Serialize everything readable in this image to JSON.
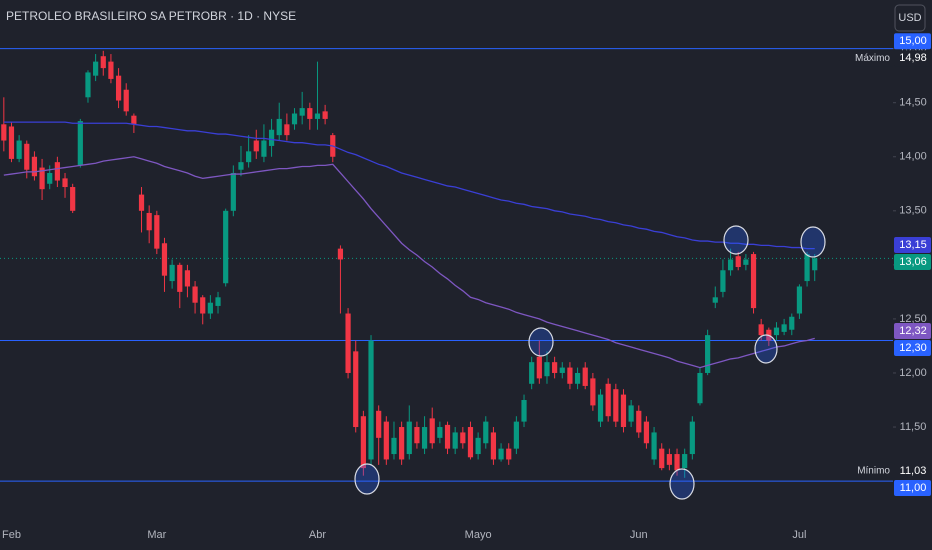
{
  "header": {
    "title": "PETROLEO BRASILEIRO SA PETROBR · 1D · NYSE",
    "currency": "USD"
  },
  "chart_data": {
    "type": "candlestick",
    "categories": [
      null,
      "Feb",
      null,
      null,
      null,
      null,
      null,
      null,
      null,
      null,
      null,
      null,
      null,
      null,
      null,
      null,
      null,
      null,
      null,
      null,
      "Mar",
      null,
      null,
      null,
      null,
      null,
      null,
      null,
      null,
      null,
      null,
      null,
      null,
      null,
      null,
      null,
      null,
      null,
      null,
      null,
      null,
      "Abr",
      null,
      null,
      null,
      null,
      null,
      null,
      null,
      null,
      null,
      null,
      null,
      null,
      null,
      null,
      null,
      null,
      null,
      null,
      null,
      null,
      "Mayo",
      null,
      null,
      null,
      null,
      null,
      null,
      null,
      null,
      null,
      null,
      null,
      null,
      null,
      null,
      null,
      null,
      null,
      null,
      null,
      null,
      "Jun",
      null,
      null,
      null,
      null,
      null,
      null,
      null,
      null,
      null,
      null,
      null,
      null,
      null,
      null,
      null,
      null,
      null,
      null,
      null,
      null,
      "Jul",
      null,
      null
    ],
    "ohlc": [
      [
        14.3,
        14.55,
        14.05,
        14.15
      ],
      [
        14.28,
        14.32,
        13.95,
        13.98
      ],
      [
        13.98,
        14.2,
        13.95,
        14.15
      ],
      [
        14.12,
        14.15,
        13.8,
        13.88
      ],
      [
        14,
        14.05,
        13.78,
        13.82
      ],
      [
        13.9,
        13.98,
        13.6,
        13.7
      ],
      [
        13.75,
        13.92,
        13.7,
        13.85
      ],
      [
        13.95,
        14,
        13.72,
        13.78
      ],
      [
        13.8,
        13.85,
        13.62,
        13.72
      ],
      [
        13.72,
        13.75,
        13.48,
        13.5
      ],
      [
        13.92,
        14.35,
        13.9,
        14.33
      ],
      [
        14.55,
        14.8,
        14.5,
        14.78
      ],
      [
        14.75,
        14.95,
        14.7,
        14.88
      ],
      [
        14.93,
        14.98,
        14.75,
        14.82
      ],
      [
        14.88,
        14.95,
        14.68,
        14.72
      ],
      [
        14.75,
        14.82,
        14.45,
        14.52
      ],
      [
        14.62,
        14.68,
        14.38,
        14.42
      ],
      [
        14.38,
        14.4,
        14.22,
        14.3
      ],
      [
        13.65,
        13.72,
        13.3,
        13.5
      ],
      [
        13.48,
        13.55,
        13.2,
        13.32
      ],
      [
        13.46,
        13.5,
        13.1,
        13.15
      ],
      [
        13.2,
        13.25,
        12.75,
        12.9
      ],
      [
        12.85,
        13.05,
        12.78,
        13
      ],
      [
        13,
        13.02,
        12.6,
        12.75
      ],
      [
        12.95,
        13,
        12.7,
        12.8
      ],
      [
        12.8,
        12.85,
        12.55,
        12.65
      ],
      [
        12.7,
        12.72,
        12.45,
        12.55
      ],
      [
        12.55,
        12.72,
        12.5,
        12.65
      ],
      [
        12.62,
        12.75,
        12.55,
        12.7
      ],
      [
        12.83,
        13.52,
        12.8,
        13.5
      ],
      [
        13.5,
        13.92,
        13.45,
        13.85
      ],
      [
        13.88,
        14.1,
        13.82,
        13.95
      ],
      [
        13.95,
        14.2,
        13.9,
        14.05
      ],
      [
        14.15,
        14.25,
        13.98,
        14.05
      ],
      [
        14,
        14.3,
        13.95,
        14.15
      ],
      [
        14.1,
        14.35,
        14,
        14.25
      ],
      [
        14.2,
        14.5,
        14.15,
        14.35
      ],
      [
        14.3,
        14.4,
        14.15,
        14.2
      ],
      [
        14.3,
        14.45,
        14.25,
        14.4
      ],
      [
        14.38,
        14.6,
        14.3,
        14.45
      ],
      [
        14.45,
        14.5,
        14.25,
        14.35
      ],
      [
        14.35,
        14.88,
        14.25,
        14.4
      ],
      [
        14.42,
        14.48,
        14.3,
        14.35
      ],
      [
        14.2,
        14.22,
        13.95,
        14
      ],
      [
        13.15,
        13.18,
        12.55,
        13.05
      ],
      [
        12.55,
        12.6,
        11.95,
        12
      ],
      [
        12.2,
        12.3,
        11.45,
        11.5
      ],
      [
        11.6,
        11.65,
        11.05,
        11.12
      ],
      [
        11.2,
        12.35,
        11.15,
        12.3
      ],
      [
        11.65,
        11.7,
        11.15,
        11.4
      ],
      [
        11.55,
        11.6,
        11.15,
        11.2
      ],
      [
        11.25,
        11.55,
        11.2,
        11.4
      ],
      [
        11.5,
        11.55,
        11.15,
        11.2
      ],
      [
        11.25,
        11.7,
        11.2,
        11.55
      ],
      [
        11.5,
        11.55,
        11.3,
        11.35
      ],
      [
        11.3,
        11.6,
        11.25,
        11.5
      ],
      [
        11.58,
        11.68,
        11.3,
        11.35
      ],
      [
        11.4,
        11.55,
        11.35,
        11.5
      ],
      [
        11.52,
        11.55,
        11.25,
        11.3
      ],
      [
        11.3,
        11.5,
        11.25,
        11.45
      ],
      [
        11.45,
        11.5,
        11.3,
        11.35
      ],
      [
        11.5,
        11.55,
        11.2,
        11.22
      ],
      [
        11.25,
        11.45,
        11.2,
        11.4
      ],
      [
        11.35,
        11.6,
        11.3,
        11.55
      ],
      [
        11.45,
        11.5,
        11.15,
        11.2
      ],
      [
        11.2,
        11.35,
        11.18,
        11.3
      ],
      [
        11.3,
        11.35,
        11.15,
        11.2
      ],
      [
        11.3,
        11.6,
        11.25,
        11.55
      ],
      [
        11.55,
        11.8,
        11.5,
        11.75
      ],
      [
        11.9,
        12.15,
        11.85,
        12.1
      ],
      [
        12.15,
        12.3,
        11.9,
        11.95
      ],
      [
        11.97,
        12.2,
        11.9,
        12.1
      ],
      [
        12.1,
        12.15,
        11.95,
        12
      ],
      [
        12,
        12.1,
        11.95,
        12.05
      ],
      [
        12.05,
        12.1,
        11.85,
        11.9
      ],
      [
        11.9,
        12.05,
        11.85,
        12
      ],
      [
        12.05,
        12.1,
        11.85,
        11.88
      ],
      [
        11.95,
        12,
        11.65,
        11.7
      ],
      [
        11.55,
        11.85,
        11.5,
        11.8
      ],
      [
        11.9,
        11.95,
        11.55,
        11.6
      ],
      [
        11.85,
        11.9,
        11.5,
        11.55
      ],
      [
        11.8,
        11.85,
        11.45,
        11.5
      ],
      [
        11.55,
        11.75,
        11.5,
        11.7
      ],
      [
        11.65,
        11.7,
        11.4,
        11.45
      ],
      [
        11.55,
        11.6,
        11.3,
        11.35
      ],
      [
        11.2,
        11.5,
        11.15,
        11.45
      ],
      [
        11.3,
        11.35,
        11.1,
        11.12
      ],
      [
        11.25,
        11.3,
        11.1,
        11.15
      ],
      [
        11.25,
        11.3,
        11.05,
        11.1
      ],
      [
        11.12,
        11.3,
        11.03,
        11.25
      ],
      [
        11.25,
        11.6,
        11.2,
        11.55
      ],
      [
        11.72,
        12.05,
        11.7,
        12
      ],
      [
        12,
        12.4,
        11.98,
        12.35
      ],
      [
        12.65,
        12.8,
        12.6,
        12.7
      ],
      [
        12.75,
        13.05,
        12.7,
        12.95
      ],
      [
        12.95,
        13.15,
        12.9,
        13.05
      ],
      [
        13.08,
        13.12,
        12.95,
        12.98
      ],
      [
        13,
        13.1,
        12.95,
        13.05
      ],
      [
        13.1,
        13.12,
        12.55,
        12.6
      ],
      [
        12.45,
        12.5,
        12.3,
        12.35
      ],
      [
        12.4,
        12.42,
        12.25,
        12.3
      ],
      [
        12.35,
        12.47,
        12.3,
        12.42
      ],
      [
        12.38,
        12.5,
        12.35,
        12.45
      ],
      [
        12.4,
        12.55,
        12.35,
        12.52
      ],
      [
        12.55,
        12.82,
        12.5,
        12.8
      ],
      [
        12.85,
        13.12,
        12.8,
        13.1
      ],
      [
        12.95,
        13.1,
        12.85,
        13.06
      ]
    ],
    "up_color": "#089981",
    "down_color": "#f23645",
    "last_price_label": "13,06",
    "lines": [
      {
        "color": "#3a3fd6",
        "last_label": "13,15",
        "values": [
          14.32,
          14.32,
          14.32,
          14.32,
          14.32,
          14.32,
          14.32,
          14.32,
          14.32,
          14.31,
          14.31,
          14.31,
          14.31,
          14.31,
          14.31,
          14.31,
          14.31,
          14.3,
          14.29,
          14.28,
          14.28,
          14.27,
          14.26,
          14.25,
          14.24,
          14.24,
          14.23,
          14.22,
          14.21,
          14.21,
          14.2,
          14.19,
          14.18,
          14.17,
          14.17,
          14.16,
          14.15,
          14.14,
          14.13,
          14.13,
          14.12,
          14.11,
          14.11,
          14.1,
          14.07,
          14.04,
          14.02,
          13.99,
          13.96,
          13.93,
          13.91,
          13.88,
          13.85,
          13.83,
          13.81,
          13.79,
          13.77,
          13.75,
          13.73,
          13.72,
          13.7,
          13.68,
          13.66,
          13.64,
          13.62,
          13.6,
          13.59,
          13.57,
          13.56,
          13.54,
          13.53,
          13.52,
          13.5,
          13.49,
          13.47,
          13.46,
          13.45,
          13.43,
          13.42,
          13.4,
          13.39,
          13.37,
          13.36,
          13.34,
          13.33,
          13.31,
          13.3,
          13.28,
          13.26,
          13.25,
          13.23,
          13.22,
          13.22,
          13.21,
          13.21,
          13.2,
          13.2,
          13.19,
          13.19,
          13.18,
          13.18,
          13.17,
          13.17,
          13.16,
          13.16,
          13.15,
          13.15
        ]
      },
      {
        "color": "#7e57c2",
        "last_label": "12,32",
        "values": [
          13.83,
          13.84,
          13.85,
          13.86,
          13.86,
          13.87,
          13.88,
          13.89,
          13.9,
          13.91,
          13.92,
          13.93,
          13.94,
          13.96,
          13.97,
          13.98,
          13.99,
          14,
          13.98,
          13.96,
          13.94,
          13.91,
          13.89,
          13.87,
          13.85,
          13.82,
          13.8,
          13.81,
          13.82,
          13.83,
          13.84,
          13.84,
          13.85,
          13.86,
          13.87,
          13.88,
          13.89,
          13.89,
          13.9,
          13.91,
          13.91,
          13.92,
          13.92,
          13.93,
          13.85,
          13.77,
          13.69,
          13.61,
          13.52,
          13.44,
          13.36,
          13.28,
          13.2,
          13.14,
          13.09,
          13.03,
          12.98,
          12.92,
          12.87,
          12.81,
          12.76,
          12.7,
          12.68,
          12.65,
          12.63,
          12.61,
          12.59,
          12.56,
          12.54,
          12.52,
          12.5,
          12.47,
          12.45,
          12.43,
          12.41,
          12.39,
          12.37,
          12.35,
          12.33,
          12.31,
          12.28,
          12.26,
          12.24,
          12.22,
          12.2,
          12.18,
          12.16,
          12.14,
          12.11,
          12.09,
          12.07,
          12.05,
          12.07,
          12.09,
          12.11,
          12.13,
          12.14,
          12.16,
          12.18,
          12.2,
          12.22,
          12.24,
          12.25,
          12.27,
          12.29,
          12.3,
          12.32
        ]
      }
    ],
    "ylim": [
      10.64,
      15.45
    ],
    "yticks": [
      {
        "value": 11.5,
        "label": "11,50"
      },
      {
        "value": 12,
        "label": "12,00"
      },
      {
        "value": 12.5,
        "label": "12,50"
      },
      {
        "value": 13,
        "label": "13,00"
      },
      {
        "value": 13.5,
        "label": "13,50"
      },
      {
        "value": 14,
        "label": "14,00"
      },
      {
        "value": 14.5,
        "label": "14,50"
      },
      {
        "value": 15,
        "label": "15,00"
      }
    ],
    "hlines": [
      {
        "value": 15,
        "label": "15,00",
        "color": "#2962ff"
      },
      {
        "value": 12.3,
        "label": "12,30",
        "color": "#2962ff"
      },
      {
        "value": 11,
        "label": "11,00",
        "color": "#2962ff"
      }
    ],
    "extremes": [
      {
        "name": "Máximo",
        "value": 14.98,
        "label": "14,98"
      },
      {
        "name": "Mínimo",
        "value": 11.03,
        "label": "11,03"
      }
    ]
  }
}
